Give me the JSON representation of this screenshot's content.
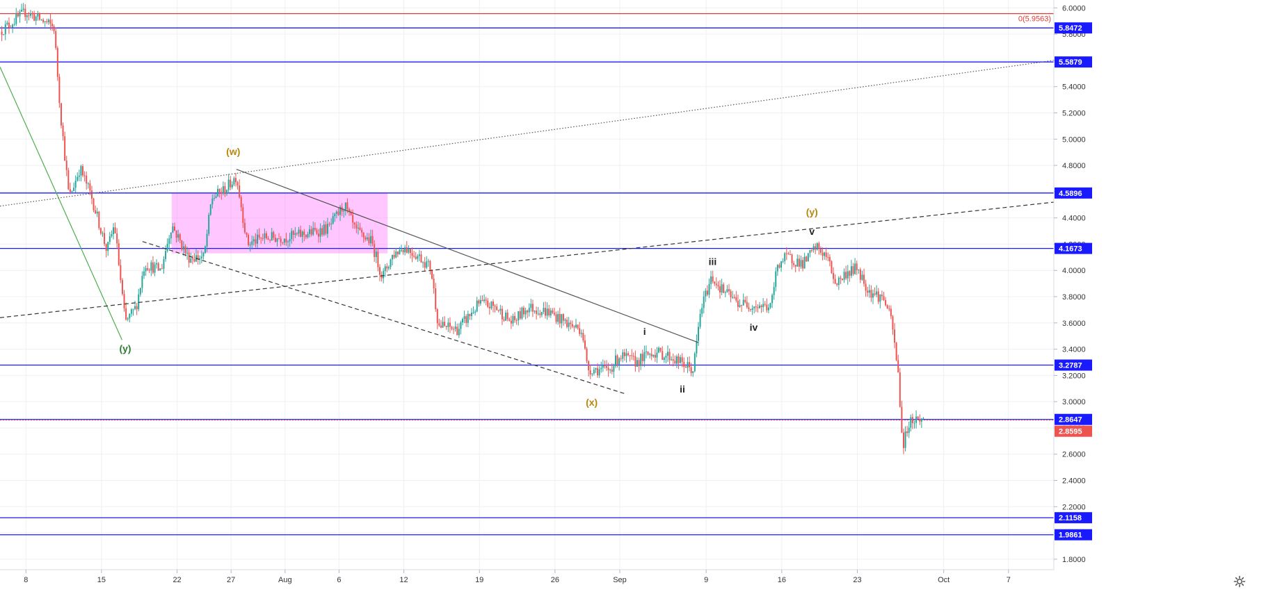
{
  "chart_data": {
    "type": "candlestick",
    "y_axis": {
      "min": 1.72,
      "max": 6.06,
      "ticks": [
        "6.0000",
        "5.8000",
        "5.6000",
        "5.4000",
        "5.2000",
        "5.0000",
        "4.8000",
        "4.6000",
        "4.4000",
        "4.2000",
        "4.0000",
        "3.8000",
        "3.6000",
        "3.4000",
        "3.2000",
        "3.0000",
        "2.8000",
        "2.6000",
        "2.4000",
        "2.2000",
        "2.0000",
        "1.8000"
      ]
    },
    "x_axis": {
      "labels": [
        {
          "label": "8",
          "day": 0
        },
        {
          "label": "15",
          "day": 7
        },
        {
          "label": "22",
          "day": 14
        },
        {
          "label": "27",
          "day": 19
        },
        {
          "label": "Aug",
          "day": 24
        },
        {
          "label": "6",
          "day": 29
        },
        {
          "label": "12",
          "day": 35
        },
        {
          "label": "19",
          "day": 42
        },
        {
          "label": "26",
          "day": 49
        },
        {
          "label": "Sep",
          "day": 55
        },
        {
          "label": "9",
          "day": 63
        },
        {
          "label": "16",
          "day": 70
        },
        {
          "label": "23",
          "day": 77
        },
        {
          "label": "Oct",
          "day": 85
        },
        {
          "label": "7",
          "day": 91
        }
      ],
      "range_days": [
        -2.4,
        95.2
      ]
    },
    "horizontal_levels": [
      {
        "value": 5.9563,
        "label": "0(5.9563)",
        "color": "#e53935",
        "style": "fib"
      },
      {
        "value": 5.8472,
        "label": "5.8472",
        "color": "#1a1aff"
      },
      {
        "value": 5.5879,
        "label": "5.5879",
        "color": "#1a1aff"
      },
      {
        "value": 4.5896,
        "label": "4.5896",
        "color": "#1a1aff"
      },
      {
        "value": 4.1673,
        "label": "4.1673",
        "color": "#1a1aff"
      },
      {
        "value": 3.2787,
        "label": "3.2787",
        "color": "#1a1aff"
      },
      {
        "value": 2.8647,
        "label": "2.8647",
        "color": "#1a1aff"
      },
      {
        "value": 2.1158,
        "label": "2.1158",
        "color": "#1a1aff"
      },
      {
        "value": 1.9861,
        "label": "1.9861",
        "color": "#1a1aff"
      }
    ],
    "last_price": {
      "value": 2.8595,
      "label": "2.8595",
      "color": "#ef5350"
    },
    "price_path": [
      {
        "day": -2.4,
        "price": 5.82
      },
      {
        "day": 0,
        "price": 5.97
      },
      {
        "day": 2,
        "price": 5.88
      },
      {
        "day": 2.6,
        "price": 5.85
      },
      {
        "day": 3.2,
        "price": 5.2
      },
      {
        "day": 4,
        "price": 4.55
      },
      {
        "day": 5,
        "price": 4.78
      },
      {
        "day": 6,
        "price": 4.58
      },
      {
        "day": 7.5,
        "price": 4.15
      },
      {
        "day": 8.2,
        "price": 4.35
      },
      {
        "day": 9.2,
        "price": 3.6
      },
      {
        "day": 10.2,
        "price": 3.72
      },
      {
        "day": 11,
        "price": 4.05
      },
      {
        "day": 12.5,
        "price": 4.0
      },
      {
        "day": 13.5,
        "price": 4.35
      },
      {
        "day": 15,
        "price": 4.1
      },
      {
        "day": 16.5,
        "price": 4.1
      },
      {
        "day": 17.2,
        "price": 4.55
      },
      {
        "day": 18.5,
        "price": 4.62
      },
      {
        "day": 19.5,
        "price": 4.72
      },
      {
        "day": 20.5,
        "price": 4.2
      },
      {
        "day": 22,
        "price": 4.25
      },
      {
        "day": 24,
        "price": 4.25
      },
      {
        "day": 26,
        "price": 4.28
      },
      {
        "day": 28,
        "price": 4.32
      },
      {
        "day": 29.5,
        "price": 4.5
      },
      {
        "day": 30.5,
        "price": 4.3
      },
      {
        "day": 32,
        "price": 4.22
      },
      {
        "day": 33,
        "price": 3.95
      },
      {
        "day": 34,
        "price": 4.12
      },
      {
        "day": 35,
        "price": 4.18
      },
      {
        "day": 36.5,
        "price": 4.1
      },
      {
        "day": 37.5,
        "price": 4.02
      },
      {
        "day": 38.2,
        "price": 3.58
      },
      {
        "day": 40,
        "price": 3.55
      },
      {
        "day": 42,
        "price": 3.75
      },
      {
        "day": 43.5,
        "price": 3.72
      },
      {
        "day": 45,
        "price": 3.6
      },
      {
        "day": 46.5,
        "price": 3.72
      },
      {
        "day": 48.5,
        "price": 3.68
      },
      {
        "day": 50.5,
        "price": 3.58
      },
      {
        "day": 51.5,
        "price": 3.55
      },
      {
        "day": 52,
        "price": 3.25
      },
      {
        "day": 54,
        "price": 3.24
      },
      {
        "day": 55,
        "price": 3.35
      },
      {
        "day": 56.5,
        "price": 3.3
      },
      {
        "day": 58,
        "price": 3.38
      },
      {
        "day": 59.5,
        "price": 3.35
      },
      {
        "day": 61,
        "price": 3.28
      },
      {
        "day": 61.8,
        "price": 3.24
      },
      {
        "day": 62.5,
        "price": 3.7
      },
      {
        "day": 63.5,
        "price": 3.95
      },
      {
        "day": 64.5,
        "price": 3.85
      },
      {
        "day": 66,
        "price": 3.75
      },
      {
        "day": 68,
        "price": 3.73
      },
      {
        "day": 69,
        "price": 3.72
      },
      {
        "day": 69.6,
        "price": 4.05
      },
      {
        "day": 70.5,
        "price": 4.1
      },
      {
        "day": 72,
        "price": 4.05
      },
      {
        "day": 73.2,
        "price": 4.18
      },
      {
        "day": 74.2,
        "price": 4.1
      },
      {
        "day": 75,
        "price": 3.9
      },
      {
        "day": 76,
        "price": 3.98
      },
      {
        "day": 77,
        "price": 4.02
      },
      {
        "day": 78,
        "price": 3.85
      },
      {
        "day": 79.5,
        "price": 3.78
      },
      {
        "day": 80.2,
        "price": 3.6
      },
      {
        "day": 80.8,
        "price": 3.2
      },
      {
        "day": 81.2,
        "price": 2.65
      },
      {
        "day": 81.8,
        "price": 2.85
      },
      {
        "day": 82.6,
        "price": 2.87
      },
      {
        "day": 83.2,
        "price": 2.86
      }
    ],
    "trend_lines": [
      {
        "from": [
          -2.4,
          5.55
        ],
        "to": [
          8.9,
          3.47
        ],
        "style": "solid",
        "color": "#4caf50"
      },
      {
        "from": [
          -2.4,
          4.49
        ],
        "to": [
          95.2,
          5.6
        ],
        "style": "dotted",
        "color": "#555555"
      },
      {
        "from": [
          -2.4,
          3.64
        ],
        "to": [
          95.2,
          4.52
        ],
        "style": "dashed",
        "color": "#333333"
      },
      {
        "from": [
          10.8,
          4.22
        ],
        "to": [
          55.5,
          3.06
        ],
        "style": "dashed",
        "color": "#333333"
      },
      {
        "from": [
          19.5,
          4.77
        ],
        "to": [
          62.3,
          3.45
        ],
        "style": "solid",
        "color": "#555555"
      }
    ],
    "zones": [
      {
        "from_day": 13.5,
        "to_day": 33.5,
        "top": 4.59,
        "bottom": 4.13,
        "color": "#ff80ff"
      }
    ],
    "annotations": [
      {
        "text": "(w)",
        "day": 19.2,
        "price": 4.88,
        "color": "#b8860b"
      },
      {
        "text": "(y)",
        "day": 9.2,
        "price": 3.38,
        "color": "#2e7d32"
      },
      {
        "text": "(x)",
        "day": 52.4,
        "price": 2.97,
        "color": "#b8860b"
      },
      {
        "text": "(y)",
        "day": 72.8,
        "price": 4.42,
        "color": "#b8860b"
      },
      {
        "text": "v",
        "day": 72.8,
        "price": 4.27,
        "color": "#222222"
      },
      {
        "text": "i",
        "day": 57.3,
        "price": 3.51,
        "color": "#222222"
      },
      {
        "text": "ii",
        "day": 60.8,
        "price": 3.07,
        "color": "#222222"
      },
      {
        "text": "iii",
        "day": 63.6,
        "price": 4.04,
        "color": "#222222"
      },
      {
        "text": "iv",
        "day": 67.4,
        "price": 3.54,
        "color": "#222222"
      }
    ]
  },
  "toolbar": {
    "settings_icon": "gear-icon"
  }
}
